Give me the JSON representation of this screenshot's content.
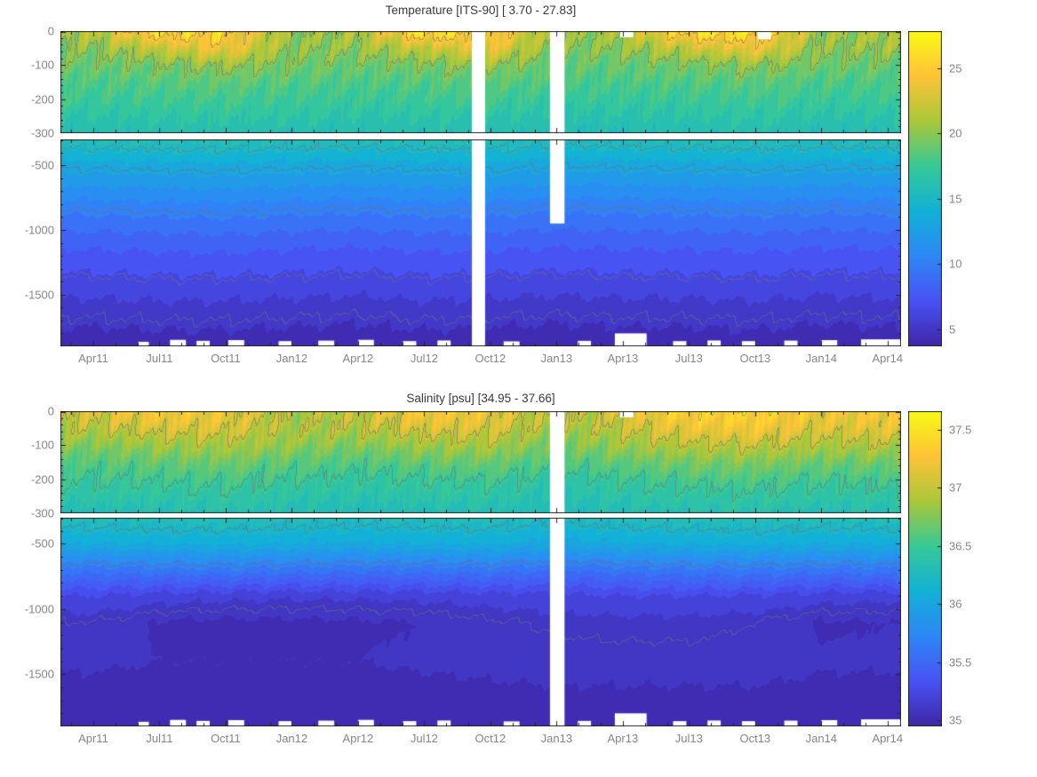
{
  "figure": {
    "background": "#ffffff",
    "axis_color": "#262626",
    "tick_label_color": "#878787",
    "title_color": "#3a3a3a"
  },
  "colormap": [
    "#3E26A8",
    "#4852F4",
    "#2E87F7",
    "#12B1D6",
    "#37C897",
    "#ABC739",
    "#FEC338",
    "#F9FB15"
  ],
  "chart_data": [
    {
      "type": "heatmap",
      "subtype": "filled-contour-depth-time-section",
      "title": "Temperature [ITS-90]   [ 3.70 - 27.83]",
      "value_range": [
        3.7,
        27.83
      ],
      "x_range": [
        2011.126,
        2014.301
      ],
      "contour_interval": 1.0,
      "contour_levels": [
        5,
        6.5,
        10,
        13,
        15,
        20,
        25
      ],
      "x_ticks": [
        {
          "label": "Apr11",
          "t": 2011.25
        },
        {
          "label": "Jul11",
          "t": 2011.5
        },
        {
          "label": "Oct11",
          "t": 2011.75
        },
        {
          "label": "Jan12",
          "t": 2012.0
        },
        {
          "label": "Apr12",
          "t": 2012.25
        },
        {
          "label": "Jul12",
          "t": 2012.5
        },
        {
          "label": "Oct12",
          "t": 2012.75
        },
        {
          "label": "Jan13",
          "t": 2013.0
        },
        {
          "label": "Apr13",
          "t": 2013.25
        },
        {
          "label": "Jul13",
          "t": 2013.5
        },
        {
          "label": "Oct13",
          "t": 2013.75
        },
        {
          "label": "Jan14",
          "t": 2014.0
        },
        {
          "label": "Apr14",
          "t": 2014.25
        }
      ],
      "panels": [
        {
          "name": "shallow",
          "depth_range": [
            0,
            -300
          ],
          "y_ticks": [
            {
              "label": "0",
              "z": 0
            },
            {
              "label": "-100",
              "z": -100
            },
            {
              "label": "-200",
              "z": -200
            },
            {
              "label": "-300",
              "z": -300
            }
          ]
        },
        {
          "name": "deep",
          "depth_range": [
            -300,
            -1900
          ],
          "y_ticks": [
            {
              "label": "-500",
              "z": -500
            },
            {
              "label": "-1000",
              "z": -1000
            },
            {
              "label": "-1500",
              "z": -1500
            }
          ]
        }
      ],
      "colorbar": {
        "min": 3.7,
        "max": 27.83,
        "ticks": [
          {
            "label": "5",
            "value": 5
          },
          {
            "label": "10",
            "value": 10
          },
          {
            "label": "15",
            "value": 15
          },
          {
            "label": "20",
            "value": 20
          },
          {
            "label": "25",
            "value": 25
          }
        ]
      },
      "grid": {
        "times": [
          2011.25,
          2011.5,
          2011.75,
          2012.0,
          2012.25,
          2012.5,
          2012.75,
          2013.0,
          2013.25,
          2013.5,
          2013.75,
          2014.0,
          2014.25
        ],
        "depths": [
          0,
          -50,
          -100,
          -150,
          -200,
          -300,
          -500,
          -800,
          -1100,
          -1400,
          -1700,
          -1900
        ],
        "values": [
          [
            21.5,
            26.5,
            25.5,
            20.3,
            21.0,
            27.0,
            25.5,
            20.0,
            21.0,
            26.5,
            26.5,
            20.3,
            21.2
          ],
          [
            20.0,
            22.0,
            24.0,
            20.0,
            20.3,
            22.0,
            23.5,
            19.6,
            20.2,
            22.0,
            23.8,
            20.0,
            20.5
          ],
          [
            19.0,
            19.5,
            20.5,
            19.3,
            19.0,
            19.5,
            20.3,
            18.8,
            18.9,
            19.4,
            20.2,
            19.2,
            19.1
          ],
          [
            18.2,
            18.4,
            18.8,
            18.3,
            18.1,
            18.4,
            18.7,
            17.9,
            18.0,
            18.3,
            18.6,
            18.1,
            18.2
          ],
          [
            17.5,
            17.6,
            17.8,
            17.6,
            17.4,
            17.6,
            17.7,
            17.2,
            17.3,
            17.5,
            17.7,
            17.4,
            17.5
          ],
          [
            15.9,
            16.0,
            16.1,
            15.9,
            15.8,
            16.0,
            16.0,
            15.6,
            15.7,
            15.9,
            16.0,
            15.7,
            15.9
          ],
          [
            13.3,
            13.4,
            13.5,
            13.3,
            13.2,
            13.4,
            13.4,
            13.1,
            13.2,
            13.3,
            13.4,
            13.2,
            13.3
          ],
          [
            10.4,
            10.5,
            10.6,
            10.4,
            10.3,
            10.5,
            10.5,
            10.2,
            10.3,
            10.4,
            10.5,
            10.3,
            10.4
          ],
          [
            8.0,
            8.1,
            8.2,
            8.0,
            7.9,
            8.1,
            8.1,
            7.9,
            8.0,
            8.0,
            8.1,
            7.9,
            8.0
          ],
          [
            6.3,
            6.4,
            6.4,
            6.3,
            6.2,
            6.4,
            6.3,
            6.2,
            6.3,
            6.3,
            6.4,
            6.2,
            6.3
          ],
          [
            4.9,
            5.0,
            5.0,
            4.9,
            4.8,
            5.0,
            4.9,
            4.8,
            4.9,
            4.9,
            5.0,
            4.8,
            4.9
          ],
          [
            4.1,
            4.2,
            4.2,
            4.1,
            4.0,
            4.2,
            4.1,
            4.0,
            4.1,
            4.1,
            4.2,
            4.0,
            4.1
          ]
        ]
      },
      "gaps": [
        {
          "t0": 2012.68,
          "t1": 2012.73,
          "z0": 0,
          "z1": -1900
        },
        {
          "t0": 2012.975,
          "t1": 2013.03,
          "z0": 0,
          "z1": -950
        },
        {
          "t0": 2013.24,
          "t1": 2013.29,
          "z0": 0,
          "z1": -18
        },
        {
          "t0": 2013.76,
          "t1": 2013.81,
          "z0": 0,
          "z1": -24
        }
      ],
      "bottom_notches": [
        {
          "t0": 2011.42,
          "t1": 2011.46,
          "z": -1865
        },
        {
          "t0": 2011.54,
          "t1": 2011.6,
          "z": -1850
        },
        {
          "t0": 2011.64,
          "t1": 2011.69,
          "z": -1858
        },
        {
          "t0": 2011.76,
          "t1": 2011.82,
          "z": -1852
        },
        {
          "t0": 2011.95,
          "t1": 2012.0,
          "z": -1860
        },
        {
          "t0": 2012.1,
          "t1": 2012.16,
          "z": -1856
        },
        {
          "t0": 2012.25,
          "t1": 2012.31,
          "z": -1850
        },
        {
          "t0": 2012.42,
          "t1": 2012.47,
          "z": -1860
        },
        {
          "t0": 2012.55,
          "t1": 2012.6,
          "z": -1855
        },
        {
          "t0": 2012.8,
          "t1": 2012.86,
          "z": -1862
        },
        {
          "t0": 2013.08,
          "t1": 2013.13,
          "z": -1858
        },
        {
          "t0": 2013.22,
          "t1": 2013.34,
          "z": -1800
        },
        {
          "t0": 2013.44,
          "t1": 2013.49,
          "z": -1860
        },
        {
          "t0": 2013.57,
          "t1": 2013.62,
          "z": -1855
        },
        {
          "t0": 2013.7,
          "t1": 2013.75,
          "z": -1860
        },
        {
          "t0": 2013.86,
          "t1": 2013.91,
          "z": -1856
        },
        {
          "t0": 2014.0,
          "t1": 2014.06,
          "z": -1852
        },
        {
          "t0": 2014.15,
          "t1": 2014.3,
          "z": -1846
        }
      ]
    },
    {
      "type": "heatmap",
      "subtype": "filled-contour-depth-time-section",
      "title": "Salinity [psu]   [34.95 - 37.66]",
      "value_range": [
        34.95,
        37.66
      ],
      "x_range": [
        2011.126,
        2014.301
      ],
      "contour_interval": 0.1,
      "contour_levels": [
        35.1,
        35.7,
        36.2,
        36.5,
        37.0,
        37.5
      ],
      "x_ticks": [
        {
          "label": "Apr11",
          "t": 2011.25
        },
        {
          "label": "Jul11",
          "t": 2011.5
        },
        {
          "label": "Oct11",
          "t": 2011.75
        },
        {
          "label": "Jan12",
          "t": 2012.0
        },
        {
          "label": "Apr12",
          "t": 2012.25
        },
        {
          "label": "Jul12",
          "t": 2012.5
        },
        {
          "label": "Oct12",
          "t": 2012.75
        },
        {
          "label": "Jan13",
          "t": 2013.0
        },
        {
          "label": "Apr13",
          "t": 2013.25
        },
        {
          "label": "Jul13",
          "t": 2013.5
        },
        {
          "label": "Oct13",
          "t": 2013.75
        },
        {
          "label": "Jan14",
          "t": 2014.0
        },
        {
          "label": "Apr14",
          "t": 2014.25
        }
      ],
      "panels": [
        {
          "name": "shallow",
          "depth_range": [
            0,
            -300
          ],
          "y_ticks": [
            {
              "label": "0",
              "z": 0
            },
            {
              "label": "-100",
              "z": -100
            },
            {
              "label": "-200",
              "z": -200
            },
            {
              "label": "-300",
              "z": -300
            }
          ]
        },
        {
          "name": "deep",
          "depth_range": [
            -300,
            -1900
          ],
          "y_ticks": [
            {
              "label": "-500",
              "z": -500
            },
            {
              "label": "-1000",
              "z": -1000
            },
            {
              "label": "-1500",
              "z": -1500
            }
          ]
        }
      ],
      "colorbar": {
        "min": 34.95,
        "max": 37.66,
        "ticks": [
          {
            "label": "35",
            "value": 35
          },
          {
            "label": "35.5",
            "value": 35.5
          },
          {
            "label": "36",
            "value": 36
          },
          {
            "label": "36.5",
            "value": 36.5
          },
          {
            "label": "37",
            "value": 37
          },
          {
            "label": "37.5",
            "value": 37.5
          }
        ]
      },
      "grid": {
        "times": [
          2011.25,
          2011.5,
          2011.75,
          2012.0,
          2012.25,
          2012.5,
          2012.75,
          2013.0,
          2013.25,
          2013.5,
          2013.75,
          2014.0,
          2014.25
        ],
        "depths": [
          0,
          -50,
          -100,
          -150,
          -200,
          -300,
          -500,
          -700,
          -900,
          -1100,
          -1400,
          -1900
        ],
        "values": [
          [
            37.1,
            37.3,
            37.2,
            36.9,
            37.0,
            37.3,
            37.2,
            36.9,
            37.1,
            37.4,
            37.4,
            37.2,
            37.3
          ],
          [
            36.95,
            37.1,
            37.1,
            36.9,
            36.95,
            37.1,
            37.1,
            36.85,
            37.0,
            37.2,
            37.25,
            37.1,
            37.15
          ],
          [
            36.75,
            36.85,
            36.9,
            36.8,
            36.75,
            36.85,
            36.9,
            36.7,
            36.85,
            36.95,
            37.0,
            36.9,
            36.95
          ],
          [
            36.6,
            36.65,
            36.7,
            36.62,
            36.58,
            36.65,
            36.68,
            36.55,
            36.65,
            36.72,
            36.75,
            36.68,
            36.7
          ],
          [
            36.5,
            36.52,
            36.55,
            36.5,
            36.45,
            36.5,
            36.52,
            36.42,
            36.5,
            36.55,
            36.58,
            36.52,
            36.55
          ],
          [
            36.3,
            36.32,
            36.33,
            36.3,
            36.28,
            36.3,
            36.31,
            36.25,
            36.3,
            36.32,
            36.34,
            36.3,
            36.32
          ],
          [
            36.05,
            36.06,
            36.07,
            36.05,
            36.03,
            36.05,
            36.06,
            36.0,
            36.04,
            36.06,
            36.07,
            36.05,
            36.06
          ],
          [
            35.6,
            35.62,
            35.63,
            35.6,
            35.58,
            35.6,
            35.61,
            35.55,
            35.6,
            35.62,
            35.63,
            35.6,
            35.62
          ],
          [
            35.25,
            35.2,
            35.18,
            35.17,
            35.17,
            35.18,
            35.2,
            35.22,
            35.25,
            35.25,
            35.24,
            35.2,
            35.18
          ],
          [
            35.1,
            35.04,
            35.03,
            35.03,
            35.04,
            35.05,
            35.09,
            35.11,
            35.12,
            35.12,
            35.1,
            35.04,
            35.05
          ],
          [
            35.06,
            35.05,
            35.05,
            35.05,
            35.05,
            35.06,
            35.07,
            35.08,
            35.08,
            35.08,
            35.08,
            35.06,
            35.06
          ],
          [
            35.0,
            35.0,
            35.0,
            35.0,
            35.0,
            35.0,
            35.0,
            35.0,
            35.0,
            35.0,
            35.0,
            35.0,
            35.0
          ]
        ]
      },
      "gaps": [
        {
          "t0": 2012.975,
          "t1": 2013.03,
          "z0": 0,
          "z1": -1900
        },
        {
          "t0": 2013.24,
          "t1": 2013.29,
          "z0": 0,
          "z1": -18
        }
      ],
      "bottom_notches": [
        {
          "t0": 2011.42,
          "t1": 2011.46,
          "z": -1865
        },
        {
          "t0": 2011.54,
          "t1": 2011.6,
          "z": -1850
        },
        {
          "t0": 2011.64,
          "t1": 2011.69,
          "z": -1858
        },
        {
          "t0": 2011.76,
          "t1": 2011.82,
          "z": -1852
        },
        {
          "t0": 2011.95,
          "t1": 2012.0,
          "z": -1860
        },
        {
          "t0": 2012.1,
          "t1": 2012.16,
          "z": -1856
        },
        {
          "t0": 2012.25,
          "t1": 2012.31,
          "z": -1850
        },
        {
          "t0": 2012.42,
          "t1": 2012.47,
          "z": -1860
        },
        {
          "t0": 2012.55,
          "t1": 2012.6,
          "z": -1855
        },
        {
          "t0": 2012.8,
          "t1": 2012.86,
          "z": -1862
        },
        {
          "t0": 2013.08,
          "t1": 2013.13,
          "z": -1858
        },
        {
          "t0": 2013.22,
          "t1": 2013.34,
          "z": -1800
        },
        {
          "t0": 2013.44,
          "t1": 2013.49,
          "z": -1860
        },
        {
          "t0": 2013.57,
          "t1": 2013.62,
          "z": -1855
        },
        {
          "t0": 2013.7,
          "t1": 2013.75,
          "z": -1860
        },
        {
          "t0": 2013.86,
          "t1": 2013.91,
          "z": -1856
        },
        {
          "t0": 2014.0,
          "t1": 2014.06,
          "z": -1852
        },
        {
          "t0": 2014.15,
          "t1": 2014.3,
          "z": -1846
        }
      ]
    }
  ]
}
